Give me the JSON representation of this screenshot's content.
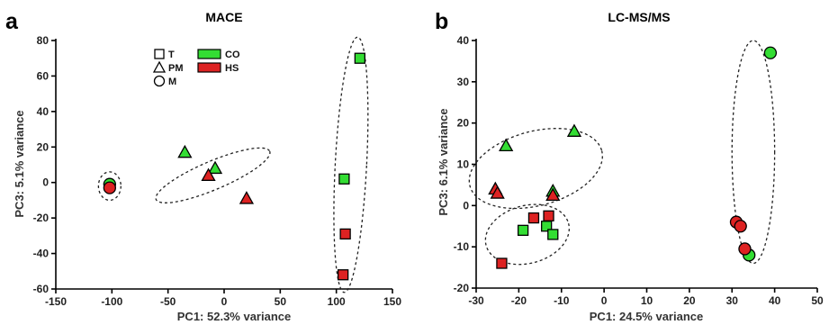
{
  "chart_data": [
    {
      "panel": "a",
      "type": "scatter",
      "title": "MACE",
      "xlabel": "PC1: 52.3% variance",
      "ylabel": "PC3: 5.1% variance",
      "xlim": [
        -150,
        150
      ],
      "ylim": [
        -60,
        80
      ],
      "xticks": [
        -150,
        -100,
        -50,
        0,
        50,
        100,
        150
      ],
      "yticks": [
        -60,
        -40,
        -20,
        0,
        20,
        40,
        60,
        80
      ],
      "grid": false,
      "legend": {
        "shapes": [
          {
            "label": "T",
            "shape": "square"
          },
          {
            "label": "PM",
            "shape": "triangle"
          },
          {
            "label": "M",
            "shape": "circle"
          }
        ],
        "groups": [
          {
            "label": "CO",
            "color": "#33dd33"
          },
          {
            "label": "HS",
            "color": "#dd2222"
          }
        ]
      },
      "points": [
        {
          "x": -102,
          "y": -1,
          "shape": "circle",
          "group": "CO"
        },
        {
          "x": -102,
          "y": -3,
          "shape": "circle",
          "group": "HS"
        },
        {
          "x": -35,
          "y": 17,
          "shape": "triangle",
          "group": "CO"
        },
        {
          "x": -8,
          "y": 8,
          "shape": "triangle",
          "group": "CO"
        },
        {
          "x": -14,
          "y": 4,
          "shape": "triangle",
          "group": "HS"
        },
        {
          "x": 20,
          "y": -9,
          "shape": "triangle",
          "group": "HS"
        },
        {
          "x": 121,
          "y": 70,
          "shape": "square",
          "group": "CO"
        },
        {
          "x": 107,
          "y": 2,
          "shape": "square",
          "group": "CO"
        },
        {
          "x": 108,
          "y": -29,
          "shape": "square",
          "group": "HS"
        },
        {
          "x": 106,
          "y": -52,
          "shape": "square",
          "group": "HS"
        }
      ],
      "ellipses": [
        {
          "cx": -102,
          "cy": -2,
          "rx": 10,
          "ry": 8,
          "angle": 0
        },
        {
          "cx": -10,
          "cy": 4,
          "rx": 55,
          "ry": 8,
          "angle": -23
        },
        {
          "cx": 113,
          "cy": 10,
          "rx": 14,
          "ry": 72,
          "angle": 3
        }
      ]
    },
    {
      "panel": "b",
      "type": "scatter",
      "title": "LC-MS/MS",
      "xlabel": "PC1: 24.5% variance",
      "ylabel": "PC3: 6.1% variance",
      "xlim": [
        -30,
        50
      ],
      "ylim": [
        -20,
        40
      ],
      "xticks": [
        -30,
        -20,
        -10,
        0,
        10,
        20,
        30,
        40,
        50
      ],
      "yticks": [
        -20,
        -10,
        0,
        10,
        20,
        30,
        40
      ],
      "grid": false,
      "points": [
        {
          "x": -23,
          "y": 14.5,
          "shape": "triangle",
          "group": "CO"
        },
        {
          "x": -7,
          "y": 18,
          "shape": "triangle",
          "group": "CO"
        },
        {
          "x": -12,
          "y": 3.5,
          "shape": "triangle",
          "group": "CO"
        },
        {
          "x": -25.5,
          "y": 4,
          "shape": "triangle",
          "group": "HS"
        },
        {
          "x": -25,
          "y": 3,
          "shape": "triangle",
          "group": "HS"
        },
        {
          "x": -12,
          "y": 2.5,
          "shape": "triangle",
          "group": "HS"
        },
        {
          "x": -19,
          "y": -6,
          "shape": "square",
          "group": "CO"
        },
        {
          "x": -13.5,
          "y": -5,
          "shape": "square",
          "group": "CO"
        },
        {
          "x": -12,
          "y": -7,
          "shape": "square",
          "group": "CO"
        },
        {
          "x": -16.5,
          "y": -3,
          "shape": "square",
          "group": "HS"
        },
        {
          "x": -13,
          "y": -2.5,
          "shape": "square",
          "group": "HS"
        },
        {
          "x": -24,
          "y": -14,
          "shape": "square",
          "group": "HS"
        },
        {
          "x": 39,
          "y": 37,
          "shape": "circle",
          "group": "CO"
        },
        {
          "x": 34,
          "y": -12,
          "shape": "circle",
          "group": "CO"
        },
        {
          "x": 31,
          "y": -4,
          "shape": "circle",
          "group": "HS"
        },
        {
          "x": 32,
          "y": -5,
          "shape": "circle",
          "group": "HS"
        },
        {
          "x": 33,
          "y": -10.5,
          "shape": "circle",
          "group": "HS"
        }
      ],
      "ellipses": [
        {
          "cx": -16,
          "cy": 9,
          "rx": 16,
          "ry": 9,
          "angle": -15
        },
        {
          "cx": -18,
          "cy": -7,
          "rx": 10,
          "ry": 7,
          "angle": -15
        },
        {
          "cx": 35,
          "cy": 13,
          "rx": 5,
          "ry": 27,
          "angle": 0
        }
      ]
    }
  ]
}
